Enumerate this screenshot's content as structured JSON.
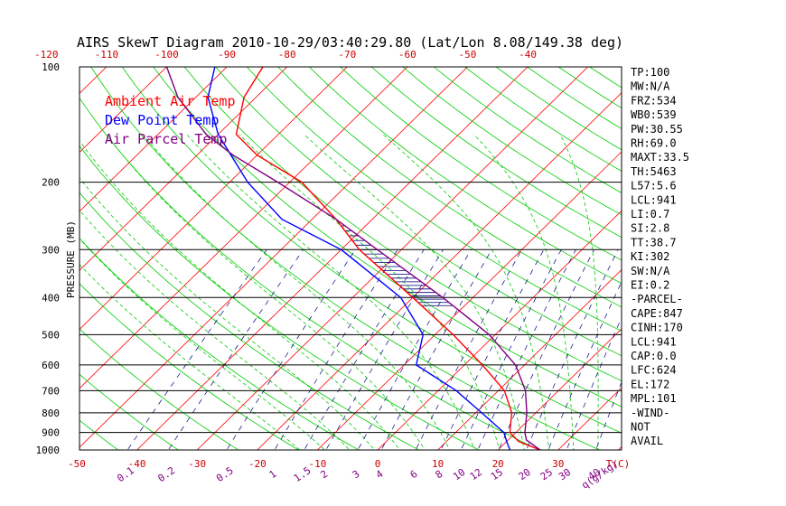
{
  "chart_data": {
    "type": "line",
    "title": "AIRS SkewT Diagram 2010-10-29/03:40:29.80 (Lat/Lon 8.08/149.38 deg)",
    "ylabel": "PRESSURE (MB)",
    "y_scale": "log",
    "ylim": [
      1000,
      100
    ],
    "pressure_ticks": [
      "100",
      "200",
      "300",
      "400",
      "500",
      "600",
      "700",
      "800",
      "900",
      "1000"
    ],
    "top_temp_ticks": [
      "-120",
      "-110",
      "-100",
      "-90",
      "-80",
      "-70",
      "-60",
      "-50",
      "-40"
    ],
    "bottom_temp_ticks": [
      "-50",
      "-40",
      "-30",
      "-20",
      "-10",
      "0",
      "10",
      "20",
      "30"
    ],
    "bottom_temp_unit": "T(C)",
    "mixing_ratio_ticks": [
      "0.1",
      "0.2",
      "0.5",
      "1",
      "1.5",
      "2",
      "3",
      "4",
      "6",
      "8",
      "10",
      "12",
      "15",
      "20",
      "25",
      "30",
      "40"
    ],
    "mixing_ratio_unit": "q(g/kg)",
    "legend": [
      {
        "label": "Ambient Air Temp",
        "color": "#ff0000"
      },
      {
        "label": "Dew Point Temp",
        "color": "#0000ff"
      },
      {
        "label": "Air Parcel Temp",
        "color": "#800080"
      }
    ],
    "series": [
      {
        "name": "Ambient Air Temp",
        "color": "#ff0000",
        "points": [
          [
            1000,
            27
          ],
          [
            950,
            22
          ],
          [
            900,
            19
          ],
          [
            800,
            16
          ],
          [
            700,
            11
          ],
          [
            600,
            3
          ],
          [
            500,
            -7
          ],
          [
            400,
            -20
          ],
          [
            300,
            -37
          ],
          [
            250,
            -46
          ],
          [
            200,
            -58
          ],
          [
            170,
            -70
          ],
          [
            150,
            -77
          ],
          [
            120,
            -82
          ],
          [
            100,
            -84
          ]
        ]
      },
      {
        "name": "Dew Point Temp",
        "color": "#0000ff",
        "points": [
          [
            1000,
            22
          ],
          [
            950,
            20
          ],
          [
            900,
            18
          ],
          [
            800,
            11
          ],
          [
            700,
            3
          ],
          [
            600,
            -8
          ],
          [
            500,
            -12
          ],
          [
            400,
            -22
          ],
          [
            300,
            -40
          ],
          [
            250,
            -55
          ],
          [
            200,
            -67
          ],
          [
            150,
            -80
          ],
          [
            120,
            -88
          ],
          [
            100,
            -92
          ]
        ]
      },
      {
        "name": "Air Parcel Temp",
        "color": "#800080",
        "points": [
          [
            1000,
            27
          ],
          [
            941,
            23
          ],
          [
            900,
            21.5
          ],
          [
            800,
            18.5
          ],
          [
            700,
            14.5
          ],
          [
            600,
            8.5
          ],
          [
            500,
            -1
          ],
          [
            400,
            -15
          ],
          [
            300,
            -34
          ],
          [
            250,
            -46
          ],
          [
            200,
            -62
          ],
          [
            170,
            -74
          ],
          [
            150,
            -82
          ],
          [
            120,
            -93
          ],
          [
            100,
            -100
          ]
        ]
      }
    ]
  },
  "stats": [
    "TP:100",
    "MW:N/A",
    "FRZ:534",
    "WB0:539",
    "PW:30.55",
    "RH:69.0",
    "MAXT:33.5",
    "TH:5463",
    "L57:5.6",
    "LCL:941",
    "LI:0.7",
    "SI:2.8",
    "TT:38.7",
    "KI:302",
    "SW:N/A",
    "EI:0.2",
    "-PARCEL-",
    "CAPE:847",
    "CINH:170",
    "LCL:941",
    "CAP:0.0",
    "LFC:624",
    "EL:172",
    "MPL:101",
    "-WIND-",
    "NOT",
    "AVAIL"
  ],
  "colors": {
    "isotherm": "#ff0000",
    "dry_adiabat": "#00cc00",
    "moist_adiabat": "#00cc00",
    "mixing_ratio": "#000080",
    "isobar": "#000000",
    "cape_hatch": "#000080"
  }
}
